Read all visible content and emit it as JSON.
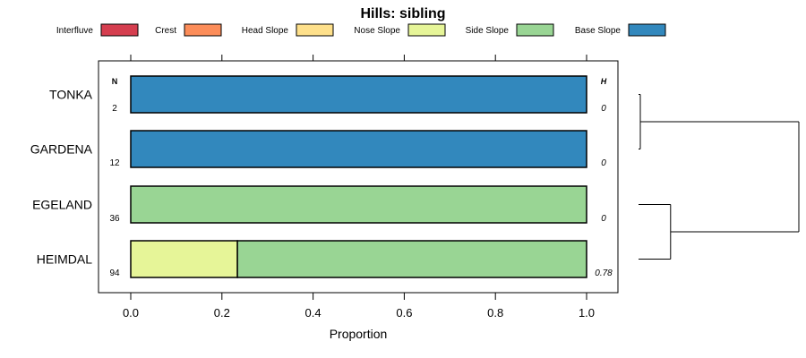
{
  "chart_data": {
    "type": "bar",
    "orientation": "horizontal-stacked",
    "title": "Hills: sibling",
    "xlabel": "Proportion",
    "ylabel": "",
    "xlim": [
      0,
      1
    ],
    "x_ticks": [
      "0.0",
      "0.2",
      "0.4",
      "0.6",
      "0.8",
      "1.0"
    ],
    "tick_values": [
      0,
      0.2,
      0.4,
      0.6,
      0.8,
      1.0
    ],
    "legend_position": "top",
    "legend": [
      {
        "name": "Interfluve",
        "color": "#d53e4f"
      },
      {
        "name": "Crest",
        "color": "#fc8d59"
      },
      {
        "name": "Head Slope",
        "color": "#fee08b"
      },
      {
        "name": "Nose Slope",
        "color": "#e6f598"
      },
      {
        "name": "Side Slope",
        "color": "#99d594"
      },
      {
        "name": "Base Slope",
        "color": "#3288bd"
      }
    ],
    "n_header": "N",
    "h_header": "H",
    "categories": [
      "TONKA",
      "GARDENA",
      "EGELAND",
      "HEIMDAL"
    ],
    "n_values": [
      "2",
      "12",
      "36",
      "94"
    ],
    "h_values": [
      "0",
      "0",
      "0",
      "0.78"
    ],
    "series": [
      {
        "name": "Interfluve",
        "values": [
          0,
          0,
          0,
          0
        ]
      },
      {
        "name": "Crest",
        "values": [
          0,
          0,
          0,
          0
        ]
      },
      {
        "name": "Head Slope",
        "values": [
          0,
          0,
          0,
          0
        ]
      },
      {
        "name": "Nose Slope",
        "values": [
          0,
          0,
          0,
          0.234
        ]
      },
      {
        "name": "Side Slope",
        "values": [
          0,
          0,
          1,
          0.766
        ]
      },
      {
        "name": "Base Slope",
        "values": [
          1,
          1,
          0,
          0
        ]
      }
    ],
    "dendrogram": {
      "merges": [
        {
          "members": [
            "TONKA",
            "GARDENA"
          ],
          "height": 0
        },
        {
          "members": [
            "EGELAND",
            "HEIMDAL"
          ],
          "height": 0.2
        },
        {
          "members": [
            "TONKA",
            "GARDENA",
            "EGELAND",
            "HEIMDAL"
          ],
          "height": 1.0
        }
      ]
    }
  }
}
